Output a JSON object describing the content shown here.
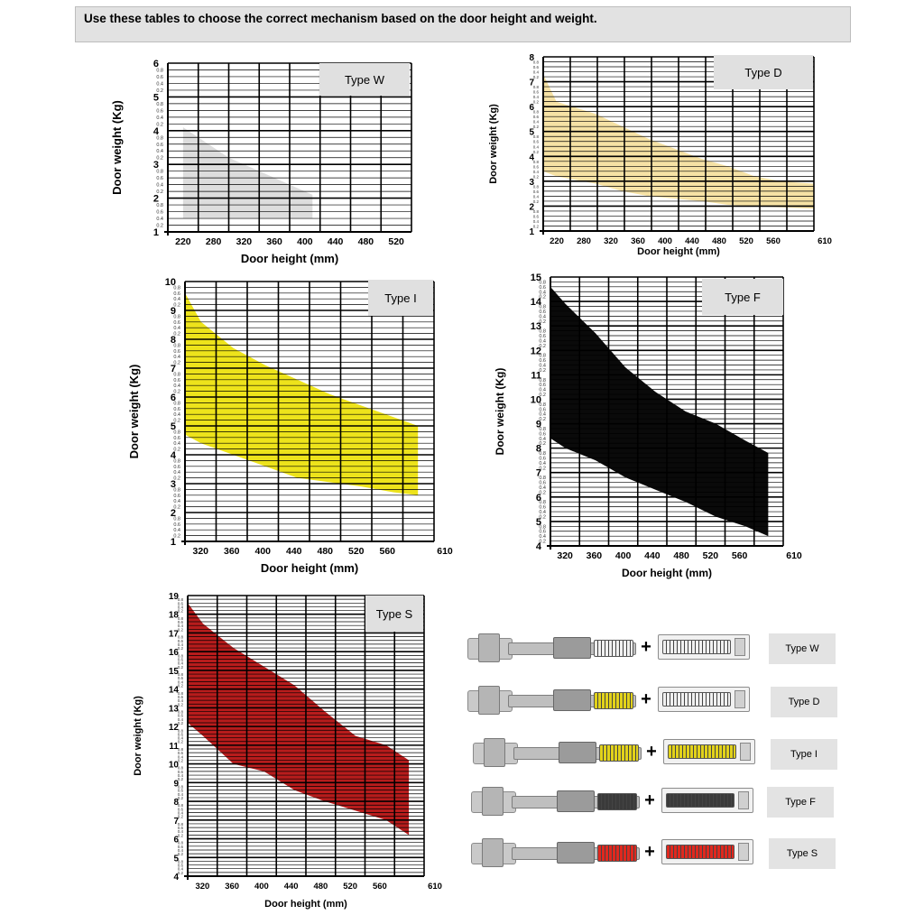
{
  "header": {
    "text": "Use these tables to choose the correct mechanism based on the door height and weight."
  },
  "mechanisms": [
    {
      "label": "Type W",
      "spring_color": "#f0f0f0"
    },
    {
      "label": "Type D",
      "spring_color": "#f0f0f0"
    },
    {
      "label": "Type I",
      "spring_color": "#e2d21a"
    },
    {
      "label": "Type F",
      "spring_color": "#3a3a3a"
    },
    {
      "label": "Type S",
      "spring_color": "#e0281e"
    }
  ],
  "chart_data": [
    {
      "type": "area",
      "title": "Type W",
      "xlabel": "Door height (mm)",
      "ylabel": "Door weight (Kg)",
      "x_ticks": [
        "220",
        "280",
        "320",
        "360",
        "400",
        "440",
        "480",
        "520"
      ],
      "y_ticks": [
        "1",
        "2",
        "3",
        "4",
        "5",
        "6"
      ],
      "minor_labels": [
        "0.8",
        "0.6",
        "0.4",
        "0.2"
      ],
      "ylim": [
        1,
        6
      ],
      "fill": "#dddddd",
      "upper": [
        [
          220,
          4.1
        ],
        [
          280,
          3.2
        ],
        [
          320,
          2.8
        ],
        [
          360,
          2.4
        ],
        [
          390,
          2.1
        ]
      ],
      "lower": [
        [
          220,
          1.4
        ],
        [
          390,
          1.4
        ]
      ]
    },
    {
      "type": "area",
      "title": "Type D",
      "xlabel": "Door height (mm)",
      "ylabel": "Door weight (Kg)",
      "x_ticks": [
        "220",
        "280",
        "320",
        "360",
        "400",
        "440",
        "480",
        "520",
        "560",
        "610"
      ],
      "y_ticks": [
        "1",
        "2",
        "3",
        "4",
        "5",
        "6",
        "7",
        "8"
      ],
      "minor_labels": [
        "0.8",
        "0.6",
        "0.4",
        "0.2"
      ],
      "ylim": [
        1,
        8
      ],
      "fill": "#f6e2a5",
      "upper": [
        [
          200,
          7.3
        ],
        [
          220,
          6.2
        ],
        [
          280,
          5.7
        ],
        [
          320,
          5.2
        ],
        [
          360,
          4.7
        ],
        [
          400,
          4.3
        ],
        [
          440,
          3.9
        ],
        [
          480,
          3.6
        ],
        [
          520,
          3.2
        ],
        [
          560,
          3.0
        ],
        [
          610,
          2.9
        ]
      ],
      "lower": [
        [
          200,
          3.4
        ],
        [
          220,
          3.2
        ],
        [
          280,
          2.9
        ],
        [
          320,
          2.6
        ],
        [
          360,
          2.4
        ],
        [
          400,
          2.3
        ],
        [
          440,
          2.2
        ],
        [
          480,
          2.05
        ],
        [
          520,
          2.0
        ],
        [
          560,
          1.95
        ],
        [
          610,
          1.9
        ]
      ]
    },
    {
      "type": "area",
      "title": "Type I",
      "xlabel": "Door height (mm)",
      "ylabel": "Door weight (Kg)",
      "x_ticks": [
        "320",
        "360",
        "400",
        "440",
        "480",
        "520",
        "560",
        "610"
      ],
      "y_ticks": [
        "1",
        "2",
        "3",
        "4",
        "5",
        "6",
        "7",
        "8",
        "9",
        "10"
      ],
      "minor_labels": [
        "0.8",
        "0.6",
        "0.4",
        "0.2"
      ],
      "ylim": [
        1,
        10
      ],
      "fill": "#ede31b",
      "upper": [
        [
          300,
          9.6
        ],
        [
          320,
          8.6
        ],
        [
          360,
          7.7
        ],
        [
          400,
          7.1
        ],
        [
          440,
          6.6
        ],
        [
          480,
          6.1
        ],
        [
          520,
          5.7
        ],
        [
          560,
          5.3
        ],
        [
          590,
          5.0
        ]
      ],
      "lower": [
        [
          300,
          4.7
        ],
        [
          320,
          4.4
        ],
        [
          360,
          4.0
        ],
        [
          400,
          3.6
        ],
        [
          440,
          3.2
        ],
        [
          480,
          3.05
        ],
        [
          520,
          2.9
        ],
        [
          560,
          2.7
        ],
        [
          590,
          2.6
        ]
      ]
    },
    {
      "type": "area",
      "title": "Type F",
      "xlabel": "Door height (mm)",
      "ylabel": "Door weight (Kg)",
      "x_ticks": [
        "320",
        "360",
        "400",
        "440",
        "480",
        "520",
        "560",
        "610"
      ],
      "y_ticks": [
        "4",
        "5",
        "6",
        "7",
        "8",
        "9",
        "10",
        "11",
        "12",
        "13",
        "14",
        "15"
      ],
      "minor_labels": [
        "0.8",
        "0.6",
        "0.4",
        "0.2"
      ],
      "ylim": [
        4,
        15
      ],
      "fill": "#0a0a0a",
      "upper": [
        [
          300,
          14.6
        ],
        [
          320,
          13.9
        ],
        [
          360,
          12.7
        ],
        [
          400,
          11.3
        ],
        [
          440,
          10.3
        ],
        [
          480,
          9.5
        ],
        [
          520,
          9.0
        ],
        [
          560,
          8.3
        ],
        [
          590,
          7.8
        ]
      ],
      "lower": [
        [
          300,
          8.4
        ],
        [
          320,
          8.0
        ],
        [
          360,
          7.5
        ],
        [
          400,
          6.8
        ],
        [
          440,
          6.3
        ],
        [
          480,
          5.8
        ],
        [
          520,
          5.2
        ],
        [
          560,
          4.8
        ],
        [
          590,
          4.4
        ]
      ]
    },
    {
      "type": "area",
      "title": "Type S",
      "xlabel": "Door height (mm)",
      "ylabel": "Door weight (Kg)",
      "x_ticks": [
        "320",
        "360",
        "400",
        "440",
        "480",
        "520",
        "560",
        "610"
      ],
      "y_ticks": [
        "4",
        "5",
        "6",
        "7",
        "8",
        "9",
        "10",
        "11",
        "12",
        "13",
        "14",
        "15",
        "16",
        "17",
        "18",
        "19"
      ],
      "minor_labels": [
        "0.8",
        "0.6",
        "0.4",
        "0.2"
      ],
      "ylim": [
        4,
        19
      ],
      "fill": "#b71c1c",
      "upper": [
        [
          300,
          18.6
        ],
        [
          320,
          17.5
        ],
        [
          360,
          16.2
        ],
        [
          400,
          15.2
        ],
        [
          440,
          14.2
        ],
        [
          480,
          12.8
        ],
        [
          520,
          11.5
        ],
        [
          560,
          11.0
        ],
        [
          590,
          10.2
        ]
      ],
      "lower": [
        [
          300,
          12.2
        ],
        [
          320,
          11.5
        ],
        [
          360,
          10.0
        ],
        [
          400,
          9.6
        ],
        [
          440,
          8.6
        ],
        [
          480,
          8.0
        ],
        [
          520,
          7.5
        ],
        [
          560,
          7.0
        ],
        [
          590,
          6.2
        ]
      ]
    }
  ]
}
